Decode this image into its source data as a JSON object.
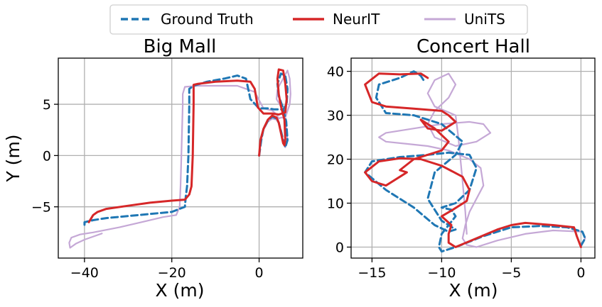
{
  "chart_data": {
    "type": "line",
    "legend": {
      "placement": "top-center",
      "entries": [
        {
          "label": "Ground Truth",
          "color": "#1f77b4",
          "style": "dashed"
        },
        {
          "label": "NeurIT",
          "color": "#d62728",
          "style": "solid"
        },
        {
          "label": "UniTS",
          "color": "#c5a8d6",
          "style": "solid"
        }
      ]
    },
    "grid": true,
    "panels": [
      {
        "title": "Big Mall",
        "xlabel": "X (m)",
        "ylabel": "Y (m)",
        "xlim": [
          -46,
          10
        ],
        "ylim": [
          -10,
          9.5
        ],
        "xticks": [
          -40,
          -20,
          0
        ],
        "yticks": [
          -5,
          0,
          5
        ],
        "xtick_labels": [
          "−40",
          "−20",
          "0"
        ],
        "ytick_labels": [
          "−5",
          "0",
          "5"
        ],
        "series": [
          {
            "name": "UniTS",
            "color": "#c5a8d6",
            "x": [
              0,
              0.5,
              1,
              2,
              3,
              4,
              4.5,
              5,
              5.5,
              6,
              6.5,
              6,
              5,
              4,
              4.2,
              5.5,
              6.5,
              7,
              7.2,
              7,
              6,
              5,
              4.5,
              4,
              3,
              1,
              -1,
              -5,
              -10,
              -14,
              -17,
              -17.5,
              -17.5,
              -17.8,
              -18,
              -18.2,
              -19,
              -22,
              -27,
              -32,
              -38,
              -41,
              -43,
              -43.5,
              -43.3,
              -42,
              -40,
              -36
            ],
            "y": [
              0,
              1.5,
              2.5,
              3.3,
              3.6,
              3.5,
              3.2,
              2.5,
              1.5,
              0.8,
              1.5,
              3.5,
              4.8,
              5.5,
              6.5,
              7.5,
              8.3,
              7.5,
              6,
              5,
              3.7,
              3.7,
              3.6,
              4,
              4.4,
              4.6,
              6.2,
              6.8,
              6.8,
              6.8,
              6.7,
              6,
              5,
              0,
              -3,
              -5,
              -5.8,
              -6,
              -6.5,
              -7,
              -7.5,
              -7.7,
              -8,
              -8.5,
              -9,
              -8.6,
              -8.2,
              -7.6
            ]
          },
          {
            "name": "Ground Truth",
            "color": "#1f77b4",
            "x": [
              0,
              0.5,
              1,
              2,
              3,
              4,
              4.5,
              5,
              5.5,
              6,
              6.5,
              6.2,
              5.5,
              4.5,
              4.2,
              5,
              6,
              6.5,
              6.3,
              5.5,
              3.5,
              2,
              0,
              -2,
              -3,
              -5,
              -8,
              -12,
              -15,
              -16,
              -16,
              -16.2,
              -16.5,
              -16.8,
              -17,
              -20,
              -25,
              -30,
              -35,
              -38,
              -40,
              -40
            ],
            "y": [
              0,
              1.5,
              2.6,
              3.4,
              3.8,
              3.6,
              3.2,
              2.4,
              1.5,
              0.8,
              1.5,
              3.3,
              4.6,
              5.8,
              7,
              8,
              7.8,
              6.5,
              5,
              4.5,
              4.5,
              4.6,
              4.6,
              5.5,
              7.5,
              7.8,
              7.5,
              7.2,
              6.8,
              6.5,
              5,
              0,
              -3,
              -4,
              -5,
              -5.5,
              -5.7,
              -5.9,
              -6.1,
              -6.3,
              -6.5,
              -7
            ]
          },
          {
            "name": "NeurIT",
            "color": "#d62728",
            "x": [
              0,
              0.3,
              1,
              2,
              3,
              4,
              4.5,
              5,
              5.5,
              5.8,
              6,
              5.8,
              5,
              4.5,
              4.2,
              4.5,
              5.5,
              6,
              6.3,
              6,
              4.5,
              3,
              1,
              -0.3,
              -1,
              -2,
              -5,
              -10,
              -14,
              -15,
              -15,
              -15.2,
              -15.5,
              -16,
              -17,
              -20,
              -25,
              -30,
              -35,
              -37,
              -38,
              -39
            ],
            "y": [
              0,
              1.5,
              2.6,
              3.5,
              3.9,
              3.7,
              3.2,
              2.2,
              1.2,
              1,
              1.6,
              3.5,
              4.8,
              6,
              7.5,
              8.4,
              8.3,
              7,
              5.5,
              4.2,
              4,
              4.1,
              4.1,
              4.7,
              6.5,
              7.2,
              7.3,
              7.2,
              7,
              6.9,
              5,
              0,
              -3,
              -3.8,
              -4.3,
              -4.4,
              -4.6,
              -4.9,
              -5.2,
              -5.5,
              -5.8,
              -6.5
            ]
          }
        ]
      },
      {
        "title": "Concert Hall",
        "xlabel": "X (m)",
        "ylabel": "",
        "xlim": [
          -16.5,
          1
        ],
        "ylim": [
          -2.5,
          43
        ],
        "xticks": [
          -15,
          -10,
          -5,
          0
        ],
        "yticks": [
          0,
          10,
          20,
          30,
          40
        ],
        "xtick_labels": [
          "−15",
          "−10",
          "−5",
          "0"
        ],
        "ytick_labels": [
          "0",
          "10",
          "20",
          "30",
          "40"
        ],
        "series": [
          {
            "name": "UniTS",
            "color": "#c5a8d6",
            "x": [
              0,
              0.3,
              0.1,
              -2,
              -4,
              -6,
              -7.5,
              -8.2,
              -8.5,
              -8.3,
              -8,
              -7.5,
              -7,
              -7.2,
              -8,
              -9.5,
              -11,
              -12.5,
              -14,
              -14.5,
              -14,
              -12,
              -10,
              -8,
              -7,
              -6.5,
              -7.5,
              -9,
              -10.5,
              -11,
              -10.5,
              -9.5,
              -9,
              -9.5,
              -10.5,
              -11,
              -10.5,
              -9,
              -8.8,
              -8.5,
              -8.3,
              -8.2
            ],
            "y": [
              0.5,
              2,
              3.5,
              3.8,
              3,
              1.5,
              0,
              0.5,
              2,
              5,
              8,
              11,
              14,
              18,
              20,
              22,
              23,
              23.5,
              24,
              25,
              26,
              27,
              28,
              28.5,
              28,
              26,
              24,
              23,
              25,
              28,
              31,
              34,
              37,
              39.5,
              38,
              35,
              32,
              30,
              25,
              15,
              8,
              3
            ]
          },
          {
            "name": "Ground Truth",
            "color": "#1f77b4",
            "x": [
              0,
              0.3,
              0.1,
              -1,
              -3,
              -5,
              -7,
              -9,
              -10,
              -10.2,
              -10,
              -9.5,
              -9,
              -9.3,
              -10,
              -9,
              -8,
              -7.5,
              -8,
              -9.5,
              -11,
              -13,
              -15,
              -15.5,
              -14,
              -12,
              -10.5,
              -9.5,
              -9,
              -10,
              -11,
              -10.5,
              -9,
              -8.5,
              -10,
              -12,
              -14,
              -14.7,
              -14.5,
              -13,
              -12,
              -11.5,
              -11.3
            ],
            "y": [
              0.3,
              2,
              3.5,
              4.5,
              4.8,
              4.5,
              2.5,
              0,
              -1,
              0,
              3,
              5,
              7,
              8.5,
              9,
              10,
              13,
              18,
              21,
              21.5,
              21,
              20.5,
              19.5,
              17,
              13,
              9,
              5,
              3.5,
              4,
              6,
              11,
              17,
              21,
              24,
              28,
              30,
              30.5,
              34,
              37,
              38.5,
              40,
              39,
              38
            ]
          },
          {
            "name": "NeurIT",
            "color": "#d62728",
            "x": [
              0,
              -0.3,
              -0.5,
              -2,
              -4,
              -5,
              -6,
              -7.5,
              -9,
              -9.5,
              -9.5,
              -9.3,
              -10,
              -9.2,
              -8.2,
              -8,
              -8.5,
              -10,
              -11.5,
              -13,
              -14.5,
              -15.5,
              -15,
              -14,
              -13,
              -12.5,
              -13,
              -12,
              -10,
              -9.5,
              -10.5,
              -11.5,
              -11,
              -10,
              -9,
              -9.5,
              -10,
              -12,
              -14,
              -15,
              -15.5,
              -14.5,
              -13,
              -11.5,
              -11
            ],
            "y": [
              0,
              2.5,
              4.5,
              5,
              5.5,
              5,
              4,
              2,
              0,
              1,
              3,
              5,
              7,
              8.5,
              10.5,
              13,
              16,
              18.5,
              20,
              20.2,
              19.5,
              17,
              15,
              14,
              16,
              17,
              17.5,
              20,
              22,
              24,
              27,
              29,
              27,
              26.5,
              28.5,
              30,
              31,
              31.5,
              32,
              33,
              37,
              39.5,
              39.3,
              39.5,
              38.5
            ]
          }
        ]
      }
    ]
  }
}
